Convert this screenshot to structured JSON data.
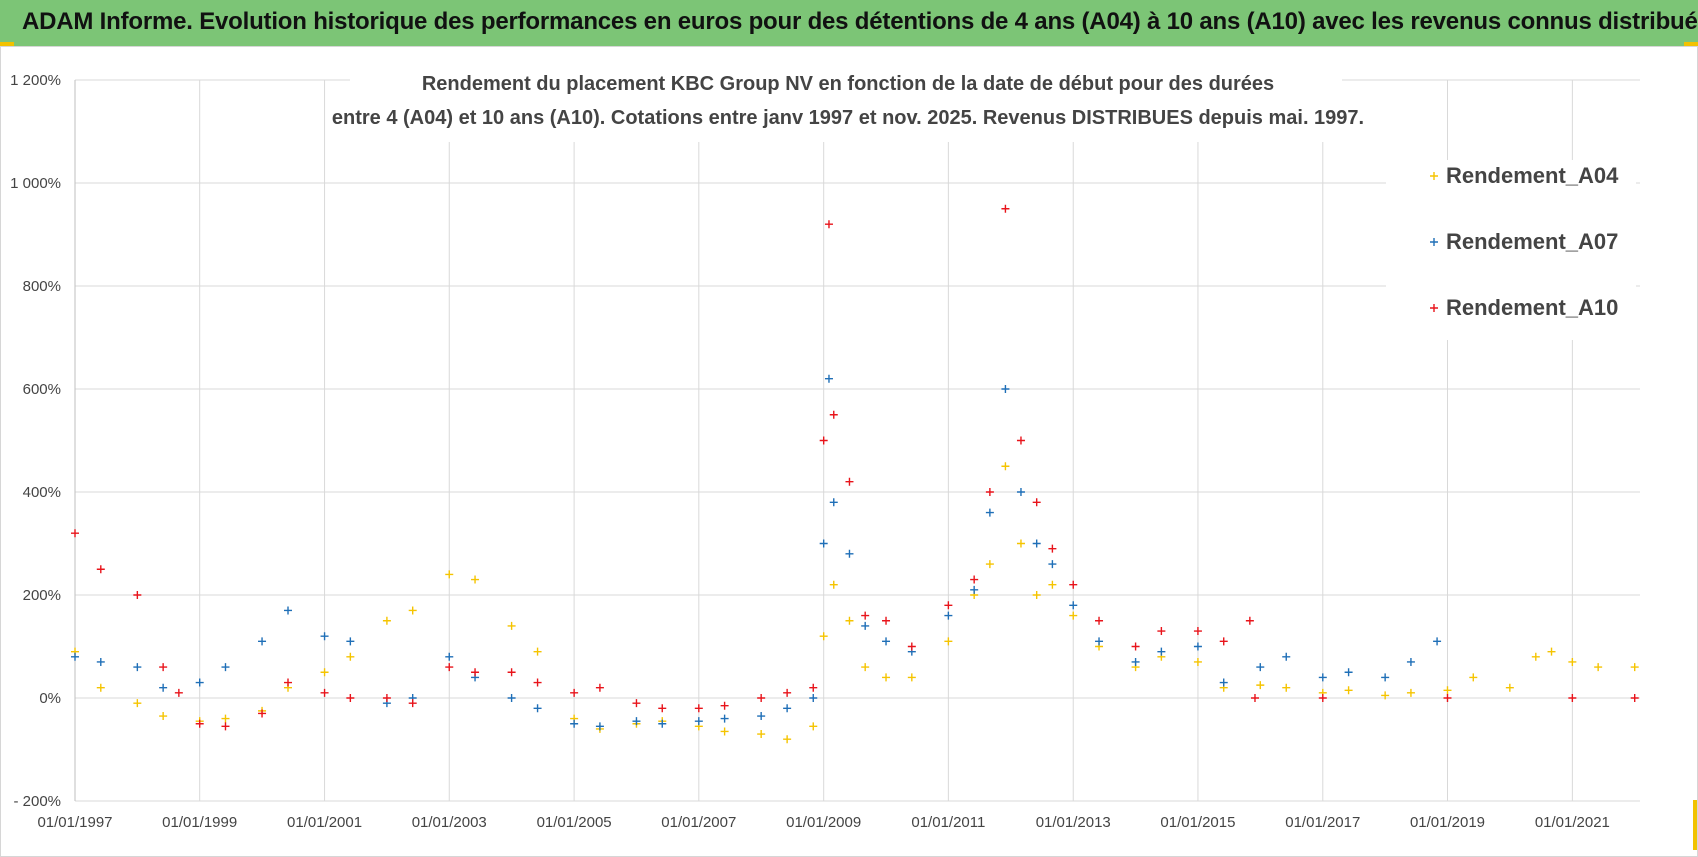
{
  "header": {
    "title": "ADAM Informe. Evolution historique des performances en euros pour des détentions de 4 ans (A04) à 10 ans (A10) avec les revenus connus distribués"
  },
  "colors": {
    "banner": "#7cc576",
    "corner": "#f2c200",
    "grid": "#d9d9d9",
    "series_A04": "#f5c400",
    "series_A07": "#1f6fb7",
    "series_A10": "#e8141b"
  },
  "chart_data": {
    "type": "scatter",
    "title_line1": "Rendement du placement KBC Group NV en fonction de la date de début pour des durées",
    "title_line2": "entre 4 (A04) et 10 ans (A10).  Cotations entre janv 1997 et nov. 2025. Revenus DISTRIBUES depuis mai. 1997.",
    "xlabel": "",
    "ylabel": "",
    "x_range": [
      "1997-01-01",
      "2022-02-01"
    ],
    "ylim": [
      -200,
      1200
    ],
    "y_ticks": [
      -200,
      0,
      200,
      400,
      600,
      800,
      1000,
      1200
    ],
    "y_tick_labels": [
      "- 200%",
      "0%",
      "200%",
      "400%",
      "600%",
      "800%",
      "1 000%",
      "1 200%"
    ],
    "x_ticks": [
      "1997-01-01",
      "1999-01-01",
      "2001-01-01",
      "2003-01-01",
      "2005-01-01",
      "2007-01-01",
      "2009-01-01",
      "2011-01-01",
      "2013-01-01",
      "2015-01-01",
      "2017-01-01",
      "2019-01-01",
      "2021-01-01"
    ],
    "x_tick_labels": [
      "01/01/1997",
      "01/01/1999",
      "01/01/2001",
      "01/01/2003",
      "01/01/2005",
      "01/01/2007",
      "01/01/2009",
      "01/01/2011",
      "01/01/2013",
      "01/01/2015",
      "01/01/2017",
      "01/01/2019",
      "01/01/2021"
    ],
    "grid": true,
    "legend_position": "right",
    "marker": "+",
    "series": [
      {
        "name": "Rendement_A04",
        "color": "#f5c400",
        "points": [
          [
            "1997-01-01",
            90
          ],
          [
            "1997-06-01",
            20
          ],
          [
            "1998-01-01",
            -10
          ],
          [
            "1998-06-01",
            -35
          ],
          [
            "1999-01-01",
            -45
          ],
          [
            "1999-06-01",
            -40
          ],
          [
            "2000-01-01",
            -25
          ],
          [
            "2000-06-01",
            20
          ],
          [
            "2001-01-01",
            50
          ],
          [
            "2001-06-01",
            80
          ],
          [
            "2002-01-01",
            150
          ],
          [
            "2002-06-01",
            170
          ],
          [
            "2003-01-01",
            240
          ],
          [
            "2003-06-01",
            230
          ],
          [
            "2004-01-01",
            140
          ],
          [
            "2004-06-01",
            90
          ],
          [
            "2005-01-01",
            -40
          ],
          [
            "2005-06-01",
            -60
          ],
          [
            "2006-01-01",
            -50
          ],
          [
            "2006-06-01",
            -45
          ],
          [
            "2007-01-01",
            -55
          ],
          [
            "2007-06-01",
            -65
          ],
          [
            "2008-01-01",
            -70
          ],
          [
            "2008-06-01",
            -80
          ],
          [
            "2008-11-01",
            -55
          ],
          [
            "2009-01-01",
            120
          ],
          [
            "2009-03-01",
            220
          ],
          [
            "2009-06-01",
            150
          ],
          [
            "2009-09-01",
            60
          ],
          [
            "2010-01-01",
            40
          ],
          [
            "2010-06-01",
            40
          ],
          [
            "2011-01-01",
            110
          ],
          [
            "2011-06-01",
            200
          ],
          [
            "2011-09-01",
            260
          ],
          [
            "2011-12-01",
            450
          ],
          [
            "2012-03-01",
            300
          ],
          [
            "2012-06-01",
            200
          ],
          [
            "2012-09-01",
            220
          ],
          [
            "2013-01-01",
            160
          ],
          [
            "2013-06-01",
            100
          ],
          [
            "2014-01-01",
            60
          ],
          [
            "2014-06-01",
            80
          ],
          [
            "2015-01-01",
            70
          ],
          [
            "2015-06-01",
            20
          ],
          [
            "2016-01-01",
            25
          ],
          [
            "2016-06-01",
            20
          ],
          [
            "2017-01-01",
            10
          ],
          [
            "2017-06-01",
            15
          ],
          [
            "2018-01-01",
            5
          ],
          [
            "2018-06-01",
            10
          ],
          [
            "2019-01-01",
            15
          ],
          [
            "2019-06-01",
            40
          ],
          [
            "2020-01-01",
            20
          ],
          [
            "2020-06-01",
            80
          ],
          [
            "2020-09-01",
            90
          ],
          [
            "2021-01-01",
            70
          ],
          [
            "2021-06-01",
            60
          ],
          [
            "2022-01-01",
            60
          ]
        ]
      },
      {
        "name": "Rendement_A07",
        "color": "#1f6fb7",
        "points": [
          [
            "1997-01-01",
            80
          ],
          [
            "1997-06-01",
            70
          ],
          [
            "1998-01-01",
            60
          ],
          [
            "1998-06-01",
            20
          ],
          [
            "1999-01-01",
            30
          ],
          [
            "1999-06-01",
            60
          ],
          [
            "2000-01-01",
            110
          ],
          [
            "2000-06-01",
            170
          ],
          [
            "2001-01-01",
            120
          ],
          [
            "2001-06-01",
            110
          ],
          [
            "2002-01-01",
            -10
          ],
          [
            "2002-06-01",
            0
          ],
          [
            "2003-01-01",
            80
          ],
          [
            "2003-06-01",
            40
          ],
          [
            "2004-01-01",
            0
          ],
          [
            "2004-06-01",
            -20
          ],
          [
            "2005-01-01",
            -50
          ],
          [
            "2005-06-01",
            -55
          ],
          [
            "2006-01-01",
            -45
          ],
          [
            "2006-06-01",
            -50
          ],
          [
            "2007-01-01",
            -45
          ],
          [
            "2007-06-01",
            -40
          ],
          [
            "2008-01-01",
            -35
          ],
          [
            "2008-06-01",
            -20
          ],
          [
            "2008-11-01",
            0
          ],
          [
            "2009-01-01",
            300
          ],
          [
            "2009-02-01",
            620
          ],
          [
            "2009-03-01",
            380
          ],
          [
            "2009-06-01",
            280
          ],
          [
            "2009-09-01",
            140
          ],
          [
            "2010-01-01",
            110
          ],
          [
            "2010-06-01",
            90
          ],
          [
            "2011-01-01",
            160
          ],
          [
            "2011-06-01",
            210
          ],
          [
            "2011-09-01",
            360
          ],
          [
            "2011-12-01",
            600
          ],
          [
            "2012-03-01",
            400
          ],
          [
            "2012-06-01",
            300
          ],
          [
            "2012-09-01",
            260
          ],
          [
            "2013-01-01",
            180
          ],
          [
            "2013-06-01",
            110
          ],
          [
            "2014-01-01",
            70
          ],
          [
            "2014-06-01",
            90
          ],
          [
            "2015-01-01",
            100
          ],
          [
            "2015-06-01",
            30
          ],
          [
            "2016-01-01",
            60
          ],
          [
            "2016-06-01",
            80
          ],
          [
            "2017-01-01",
            40
          ],
          [
            "2017-06-01",
            50
          ],
          [
            "2018-01-01",
            40
          ],
          [
            "2018-06-01",
            70
          ],
          [
            "2018-11-01",
            110
          ]
        ]
      },
      {
        "name": "Rendement_A10",
        "color": "#e8141b",
        "points": [
          [
            "1997-01-01",
            320
          ],
          [
            "1997-06-01",
            250
          ],
          [
            "1998-01-01",
            200
          ],
          [
            "1998-06-01",
            60
          ],
          [
            "1998-09-01",
            10
          ],
          [
            "1999-01-01",
            -50
          ],
          [
            "1999-06-01",
            -55
          ],
          [
            "2000-01-01",
            -30
          ],
          [
            "2000-06-01",
            30
          ],
          [
            "2001-01-01",
            10
          ],
          [
            "2001-06-01",
            0
          ],
          [
            "2002-01-01",
            0
          ],
          [
            "2002-06-01",
            -10
          ],
          [
            "2003-01-01",
            60
          ],
          [
            "2003-06-01",
            50
          ],
          [
            "2004-01-01",
            50
          ],
          [
            "2004-06-01",
            30
          ],
          [
            "2005-01-01",
            10
          ],
          [
            "2005-06-01",
            20
          ],
          [
            "2006-01-01",
            -10
          ],
          [
            "2006-06-01",
            -20
          ],
          [
            "2007-01-01",
            -20
          ],
          [
            "2007-06-01",
            -15
          ],
          [
            "2008-01-01",
            0
          ],
          [
            "2008-06-01",
            10
          ],
          [
            "2008-11-01",
            20
          ],
          [
            "2009-01-01",
            500
          ],
          [
            "2009-02-01",
            920
          ],
          [
            "2009-03-01",
            550
          ],
          [
            "2009-06-01",
            420
          ],
          [
            "2009-09-01",
            160
          ],
          [
            "2010-01-01",
            150
          ],
          [
            "2010-06-01",
            100
          ],
          [
            "2011-01-01",
            180
          ],
          [
            "2011-06-01",
            230
          ],
          [
            "2011-09-01",
            400
          ],
          [
            "2011-12-01",
            950
          ],
          [
            "2012-03-01",
            500
          ],
          [
            "2012-06-01",
            380
          ],
          [
            "2012-09-01",
            290
          ],
          [
            "2013-01-01",
            220
          ],
          [
            "2013-06-01",
            150
          ],
          [
            "2014-01-01",
            100
          ],
          [
            "2014-06-01",
            130
          ],
          [
            "2015-01-01",
            130
          ],
          [
            "2015-06-01",
            110
          ],
          [
            "2015-11-01",
            150
          ],
          [
            "2015-12-01",
            0
          ],
          [
            "2017-01-01",
            0
          ],
          [
            "2019-01-01",
            0
          ],
          [
            "2021-01-01",
            0
          ],
          [
            "2022-01-01",
            0
          ]
        ]
      }
    ]
  }
}
